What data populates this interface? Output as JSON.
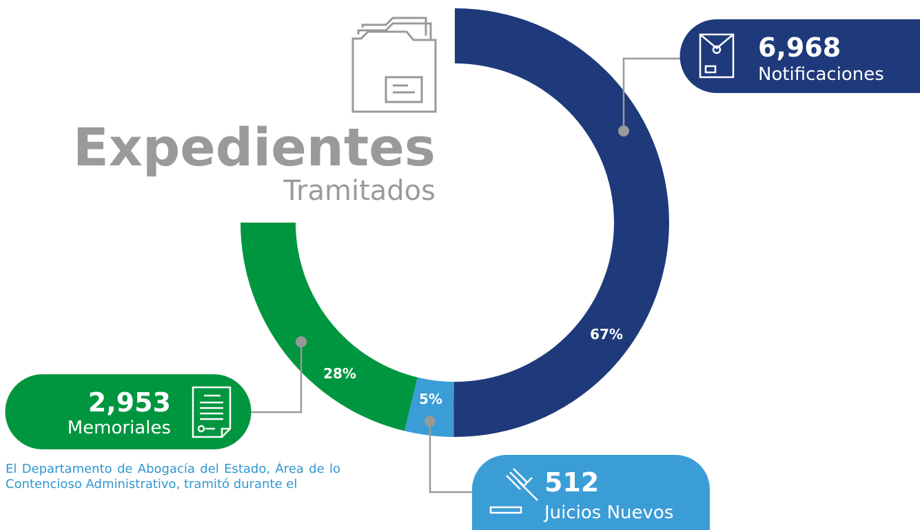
{
  "chart_data": {
    "type": "donut",
    "title": "Expedientes",
    "subtitle": "Tramitados",
    "categories": [
      "Notificaciones",
      "Juicios Nuevos",
      "Memoriales"
    ],
    "values": [
      6968,
      512,
      2953
    ],
    "value_labels": [
      "6,968",
      "512",
      "2,953"
    ],
    "shares": [
      67,
      5,
      28
    ],
    "share_labels": [
      "67%",
      "5%",
      "28%"
    ],
    "colors": [
      "#1f3a7a",
      "#3b9dd6",
      "#00963f"
    ]
  },
  "body_text": "El Departamento de Abogacía del Estado, Área de lo Contencioso Administrativo, tramitó durante el"
}
